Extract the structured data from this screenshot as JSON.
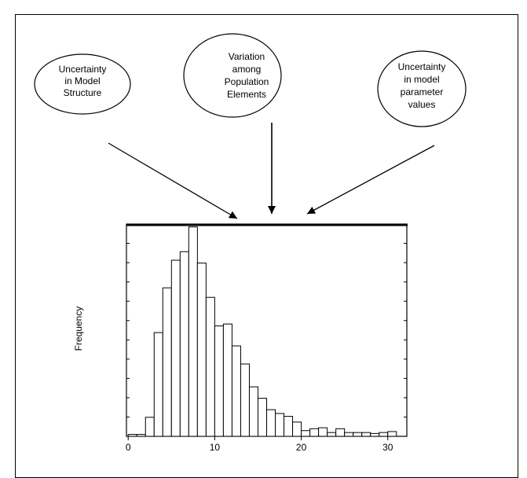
{
  "sources": [
    {
      "id": "model-structure",
      "lines": [
        "Uncertainty",
        "in Model",
        "Structure"
      ]
    },
    {
      "id": "population-variation",
      "lines": [
        "Variation",
        "among",
        "Population",
        "Elements"
      ]
    },
    {
      "id": "parameter-values",
      "lines": [
        "Uncertainty",
        "in model",
        "parameter",
        "values"
      ]
    }
  ],
  "colors": {
    "line": "#000000",
    "bar_fill": "#ffffff",
    "background": "#ffffff"
  },
  "chart_data": {
    "type": "bar",
    "title": "",
    "xlabel": "",
    "ylabel": "Frequency",
    "bin_width": 1,
    "xlim": [
      -0.2,
      32.2
    ],
    "xticks": [
      0,
      10,
      20,
      30
    ],
    "bins": [
      {
        "x0": 0,
        "x1": 1,
        "v": 0.2
      },
      {
        "x0": 1,
        "x1": 2,
        "v": 0.2
      },
      {
        "x0": 2,
        "x1": 3,
        "v": 2.0
      },
      {
        "x0": 3,
        "x1": 4,
        "v": 10.9
      },
      {
        "x0": 4,
        "x1": 5,
        "v": 15.6
      },
      {
        "x0": 5,
        "x1": 6,
        "v": 18.5
      },
      {
        "x0": 6,
        "x1": 7,
        "v": 19.4
      },
      {
        "x0": 7,
        "x1": 8,
        "v": 22.0
      },
      {
        "x0": 8,
        "x1": 9,
        "v": 18.2
      },
      {
        "x0": 9,
        "x1": 10,
        "v": 14.6
      },
      {
        "x0": 10,
        "x1": 11,
        "v": 11.6
      },
      {
        "x0": 11,
        "x1": 12,
        "v": 11.8
      },
      {
        "x0": 12,
        "x1": 13,
        "v": 9.5
      },
      {
        "x0": 13,
        "x1": 14,
        "v": 7.6
      },
      {
        "x0": 14,
        "x1": 15,
        "v": 5.2
      },
      {
        "x0": 15,
        "x1": 16,
        "v": 4.0
      },
      {
        "x0": 16,
        "x1": 17,
        "v": 2.8
      },
      {
        "x0": 17,
        "x1": 18,
        "v": 2.4
      },
      {
        "x0": 18,
        "x1": 19,
        "v": 2.1
      },
      {
        "x0": 19,
        "x1": 20,
        "v": 1.5
      },
      {
        "x0": 20,
        "x1": 21,
        "v": 0.6
      },
      {
        "x0": 21,
        "x1": 22,
        "v": 0.8
      },
      {
        "x0": 22,
        "x1": 23,
        "v": 0.9
      },
      {
        "x0": 23,
        "x1": 24,
        "v": 0.4
      },
      {
        "x0": 24,
        "x1": 25,
        "v": 0.8
      },
      {
        "x0": 25,
        "x1": 26,
        "v": 0.4
      },
      {
        "x0": 26,
        "x1": 27,
        "v": 0.4
      },
      {
        "x0": 27,
        "x1": 28,
        "v": 0.4
      },
      {
        "x0": 28,
        "x1": 29,
        "v": 0.3
      },
      {
        "x0": 29,
        "x1": 30,
        "v": 0.4
      },
      {
        "x0": 30,
        "x1": 31,
        "v": 0.5
      }
    ],
    "ylim": [
      0,
      22.3
    ],
    "grid": false
  }
}
